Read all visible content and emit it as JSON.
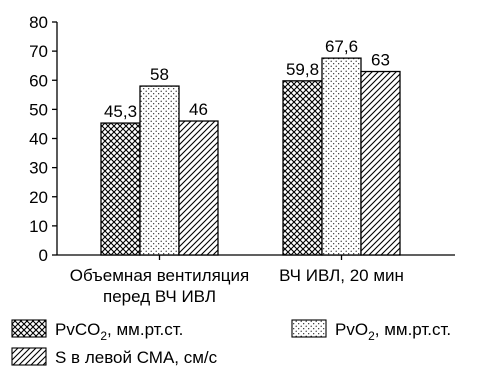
{
  "chart_data": {
    "type": "bar",
    "categories": [
      {
        "lines": [
          "Объемная вентиляция",
          "перед ВЧ ИВЛ"
        ]
      },
      {
        "lines": [
          "ВЧ ИВЛ, 20 мин"
        ]
      }
    ],
    "series": [
      {
        "pattern": "crosshatch",
        "values": [
          45.3,
          59.8
        ],
        "labels": [
          "45,3",
          "59,8"
        ],
        "legend": {
          "main": "PvCO",
          "sub": "2",
          "rest": ", мм.рт.ст."
        }
      },
      {
        "pattern": "dots",
        "values": [
          58,
          67.6
        ],
        "labels": [
          "58",
          "67,6"
        ],
        "legend": {
          "main": "PvO",
          "sub": "2",
          "rest": ", мм.рт.ст."
        }
      },
      {
        "pattern": "diagonal",
        "values": [
          46,
          63
        ],
        "labels": [
          "46",
          "63"
        ],
        "legend": {
          "main": "S в левой СМА, см/с",
          "sub": "",
          "rest": ""
        }
      }
    ],
    "ylim": [
      0,
      80
    ],
    "yticks": [
      0,
      10,
      20,
      30,
      40,
      50,
      60,
      70,
      80
    ],
    "grid": false,
    "legend_position": "bottom",
    "bar_color": "#000000"
  }
}
